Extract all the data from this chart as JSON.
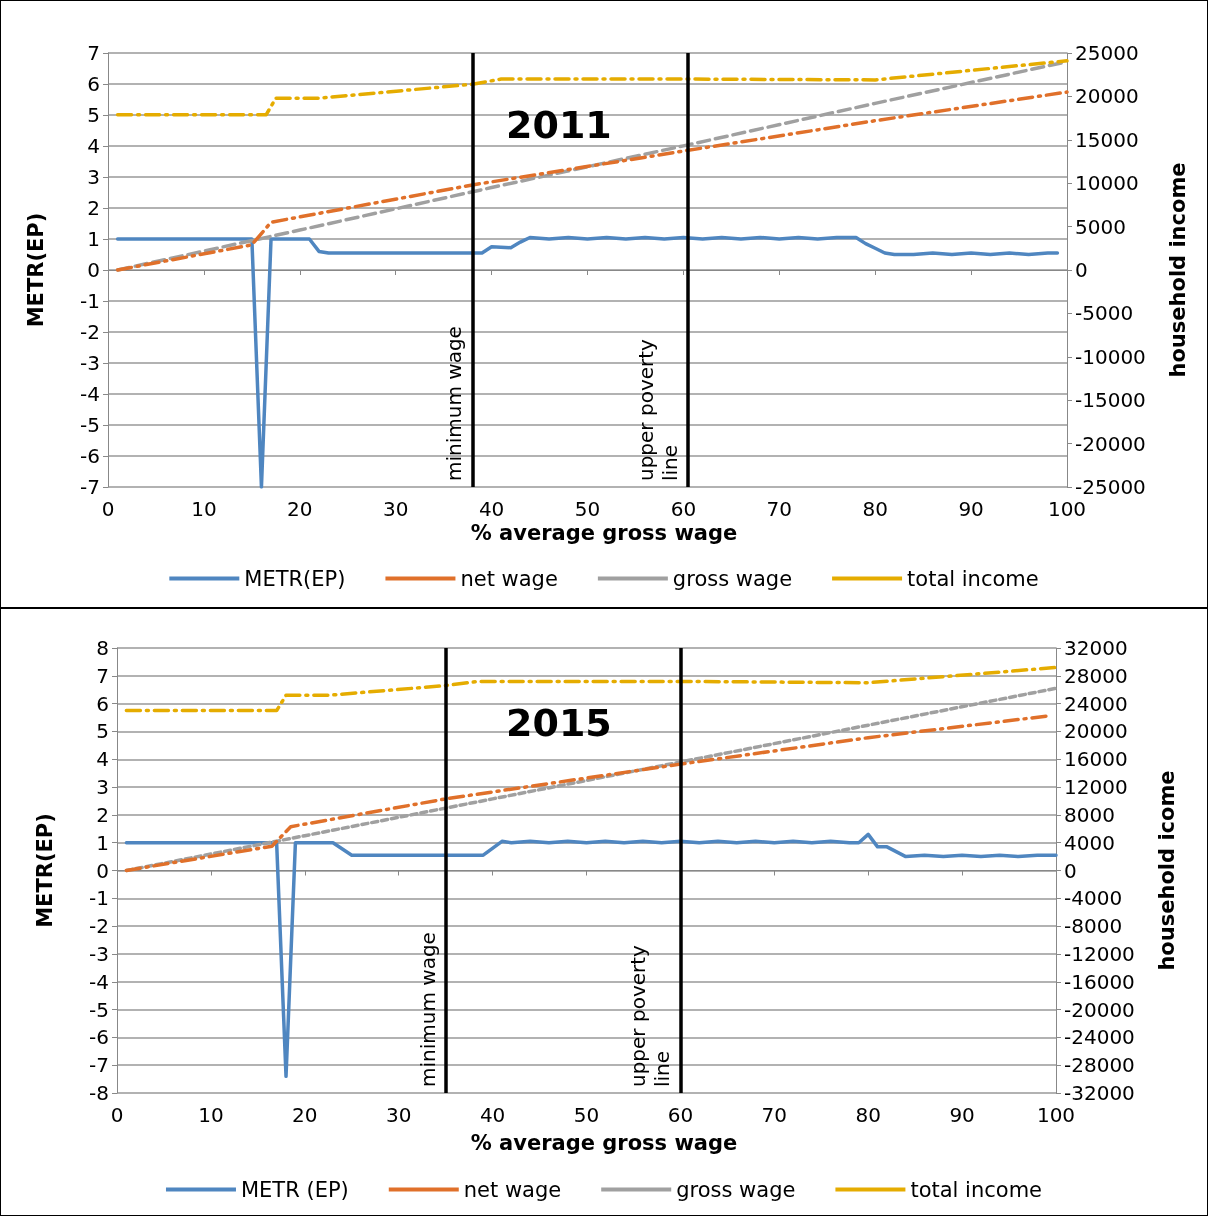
{
  "chart_data": [
    {
      "type": "line",
      "title": "2011",
      "xlabel": "% average gross wage",
      "ylabel": "METR(EP)",
      "y2label": "household income",
      "xlim": [
        0,
        100
      ],
      "xticks": [
        0,
        10,
        20,
        30,
        40,
        50,
        60,
        70,
        80,
        90,
        100
      ],
      "ylim": [
        -7,
        7
      ],
      "yticks": [
        -7,
        -6,
        -5,
        -4,
        -3,
        -2,
        -1,
        0,
        1,
        2,
        3,
        4,
        5,
        6,
        7
      ],
      "y2lim": [
        -25000,
        25000
      ],
      "y2ticks": [
        -25000,
        -20000,
        -15000,
        -10000,
        -5000,
        0,
        5000,
        10000,
        15000,
        20000,
        25000
      ],
      "grid": "y",
      "legend": "bottom",
      "marker": "none",
      "ref_lines": [
        {
          "axis": "x",
          "value": 38,
          "label": "minimum wage",
          "color": "#000000"
        },
        {
          "axis": "x",
          "value": 60.5,
          "label": "upper poverty line",
          "color": "#000000"
        }
      ],
      "series": [
        {
          "name": "METR(EP)",
          "color": "#4f86c0",
          "line_style": "solid",
          "x": [
            1,
            15,
            16,
            17,
            21,
            22,
            23,
            39,
            40,
            42,
            43,
            44,
            46,
            48,
            50,
            52,
            54,
            56,
            58,
            60,
            62,
            64,
            66,
            68,
            70,
            72,
            74,
            76,
            78,
            79,
            80,
            81,
            82,
            84,
            86,
            88,
            90,
            92,
            94,
            96,
            98,
            99
          ],
          "values": [
            1,
            1,
            -7,
            1,
            1,
            0.6,
            0.55,
            0.55,
            0.75,
            0.72,
            0.9,
            1.05,
            1,
            1.05,
            1,
            1.05,
            1,
            1.05,
            1,
            1.05,
            1,
            1.05,
            1,
            1.05,
            1,
            1.05,
            1,
            1.05,
            1.05,
            0.85,
            0.7,
            0.55,
            0.5,
            0.5,
            0.55,
            0.5,
            0.55,
            0.5,
            0.55,
            0.5,
            0.55,
            0.55
          ]
        },
        {
          "name": "net wage",
          "color": "#e0702a",
          "line_style": "dashdot",
          "axis": "y2",
          "x": [
            1,
            15,
            17,
            38,
            60,
            80,
            100
          ],
          "values": [
            0,
            2900,
            5500,
            9800,
            13700,
            17200,
            20500
          ]
        },
        {
          "name": "gross wage",
          "color": "#a0a0a0",
          "line_style": "dashed",
          "axis": "y2",
          "x": [
            1,
            20,
            40,
            60,
            80,
            100
          ],
          "values": [
            0,
            4600,
            9500,
            14300,
            19200,
            24000
          ]
        },
        {
          "name": "total income",
          "color": "#e5ac00",
          "line_style": "dashdot",
          "axis": "y2",
          "x": [
            1,
            16.5,
            17.5,
            22,
            38,
            41,
            60,
            80,
            100
          ],
          "values": [
            17900,
            17900,
            19800,
            19800,
            21400,
            22000,
            22000,
            21900,
            24100
          ]
        }
      ]
    },
    {
      "type": "line",
      "title": "2015",
      "xlabel": "% average gross wage",
      "ylabel": "METR(EP)",
      "y2label": "household icome",
      "xlim": [
        0,
        100
      ],
      "xticks": [
        0,
        10,
        20,
        30,
        40,
        50,
        60,
        70,
        80,
        90,
        100
      ],
      "ylim": [
        -8,
        8
      ],
      "yticks": [
        -8,
        -7,
        -6,
        -5,
        -4,
        -3,
        -2,
        -1,
        0,
        1,
        2,
        3,
        4,
        5,
        6,
        7,
        8
      ],
      "y2lim": [
        -32000,
        32000
      ],
      "y2ticks": [
        -32000,
        -28000,
        -24000,
        -20000,
        -16000,
        -12000,
        -8000,
        -4000,
        0,
        4000,
        8000,
        12000,
        16000,
        20000,
        24000,
        28000,
        32000
      ],
      "grid": "y",
      "legend": "bottom",
      "marker": "none",
      "ref_lines": [
        {
          "axis": "x",
          "value": 35,
          "label": "minimum wage",
          "color": "#000000"
        },
        {
          "axis": "x",
          "value": 60,
          "label": "upper poverty line",
          "color": "#000000"
        }
      ],
      "series": [
        {
          "name": "METR (EP)",
          "color": "#4f86c0",
          "line_style": "solid",
          "x": [
            1,
            17,
            18,
            19,
            23,
            25,
            39,
            41,
            42,
            44,
            46,
            48,
            50,
            52,
            54,
            56,
            58,
            60,
            62,
            64,
            66,
            68,
            70,
            72,
            74,
            76,
            78,
            79,
            80,
            81,
            82,
            84,
            86,
            88,
            90,
            92,
            94,
            96,
            98,
            100
          ],
          "values": [
            1,
            1,
            -7.4,
            1,
            1,
            0.55,
            0.55,
            1.05,
            1,
            1.05,
            1,
            1.05,
            1,
            1.05,
            1,
            1.05,
            1,
            1.05,
            1,
            1.05,
            1,
            1.05,
            1,
            1.05,
            1,
            1.05,
            1,
            1,
            1.3,
            0.85,
            0.85,
            0.5,
            0.55,
            0.5,
            0.55,
            0.5,
            0.55,
            0.5,
            0.55,
            0.55
          ]
        },
        {
          "name": "net wage",
          "color": "#e0702a",
          "line_style": "dashdot",
          "axis": "y2",
          "x": [
            1,
            16.5,
            18.5,
            35,
            60,
            80,
            99
          ],
          "values": [
            0,
            3500,
            6300,
            10300,
            15300,
            19100,
            22200
          ]
        },
        {
          "name": "gross wage",
          "color": "#a0a0a0",
          "line_style": "dotted",
          "axis": "y2",
          "x": [
            1,
            20,
            40,
            60,
            80,
            100
          ],
          "values": [
            0,
            5000,
            10300,
            15600,
            20900,
            26200
          ]
        },
        {
          "name": "total income",
          "color": "#e5ac00",
          "line_style": "dashdot",
          "axis": "y2",
          "x": [
            1,
            17,
            18,
            22.5,
            35,
            38.5,
            60,
            80,
            100
          ],
          "values": [
            23000,
            23000,
            25200,
            25200,
            26600,
            27200,
            27200,
            27000,
            29200
          ]
        }
      ]
    }
  ]
}
